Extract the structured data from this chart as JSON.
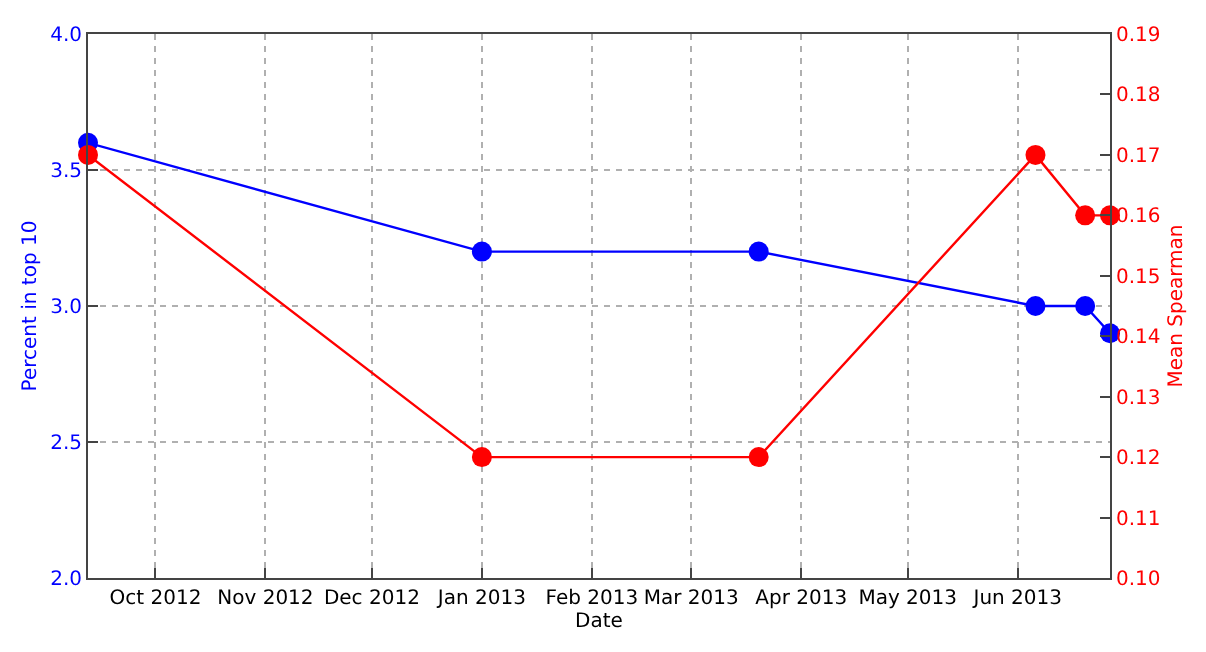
{
  "chart_data": {
    "type": "line",
    "xlabel": "Date",
    "ylabel": "Percent in top 10",
    "y2label": "Mean Spearman",
    "series": [
      {
        "color": "#0000ff",
        "x": [
          "2012-09-12",
          "2013-01-01",
          "2013-03-20",
          "2013-06-06",
          "2013-06-20",
          "2013-06-27"
        ],
        "values": [
          3.6,
          3.2,
          3.2,
          3.0,
          3.0,
          2.9
        ]
      },
      {
        "color": "#ff0000",
        "axis": "y2",
        "x": [
          "2012-09-12",
          "2013-01-01",
          "2013-03-20",
          "2013-06-06",
          "2013-06-20",
          "2013-06-27"
        ],
        "values": [
          0.17,
          0.12,
          0.12,
          0.17,
          0.16,
          0.16
        ]
      }
    ],
    "xlim": [
      "2012-09-12",
      "2013-06-27"
    ],
    "xticks": [
      {
        "value": "2012-10-01",
        "label": "Oct 2012"
      },
      {
        "value": "2012-11-01",
        "label": "Nov 2012"
      },
      {
        "value": "2012-12-01",
        "label": "Dec 2012"
      },
      {
        "value": "2013-01-01",
        "label": "Jan 2013"
      },
      {
        "value": "2013-02-01",
        "label": "Feb 2013"
      },
      {
        "value": "2013-03-01",
        "label": "Mar 2013"
      },
      {
        "value": "2013-04-01",
        "label": "Apr 2013"
      },
      {
        "value": "2013-05-01",
        "label": "May 2013"
      },
      {
        "value": "2013-06-01",
        "label": "Jun 2013"
      }
    ],
    "ylim": [
      2.0,
      4.0
    ],
    "yticks": [
      {
        "value": 2.0,
        "label": "2.0"
      },
      {
        "value": 2.5,
        "label": "2.5"
      },
      {
        "value": 3.0,
        "label": "3.0"
      },
      {
        "value": 3.5,
        "label": "3.5"
      },
      {
        "value": 4.0,
        "label": "4.0"
      }
    ],
    "y2lim": [
      0.1,
      0.19
    ],
    "y2ticks": [
      {
        "value": 0.1,
        "label": "0.10"
      },
      0.11,
      0.12,
      0.13,
      0.14,
      0.15,
      0.16,
      0.17,
      0.18,
      0.19
    ],
    "grid": true,
    "marker": "circle",
    "line_style": "solid"
  }
}
